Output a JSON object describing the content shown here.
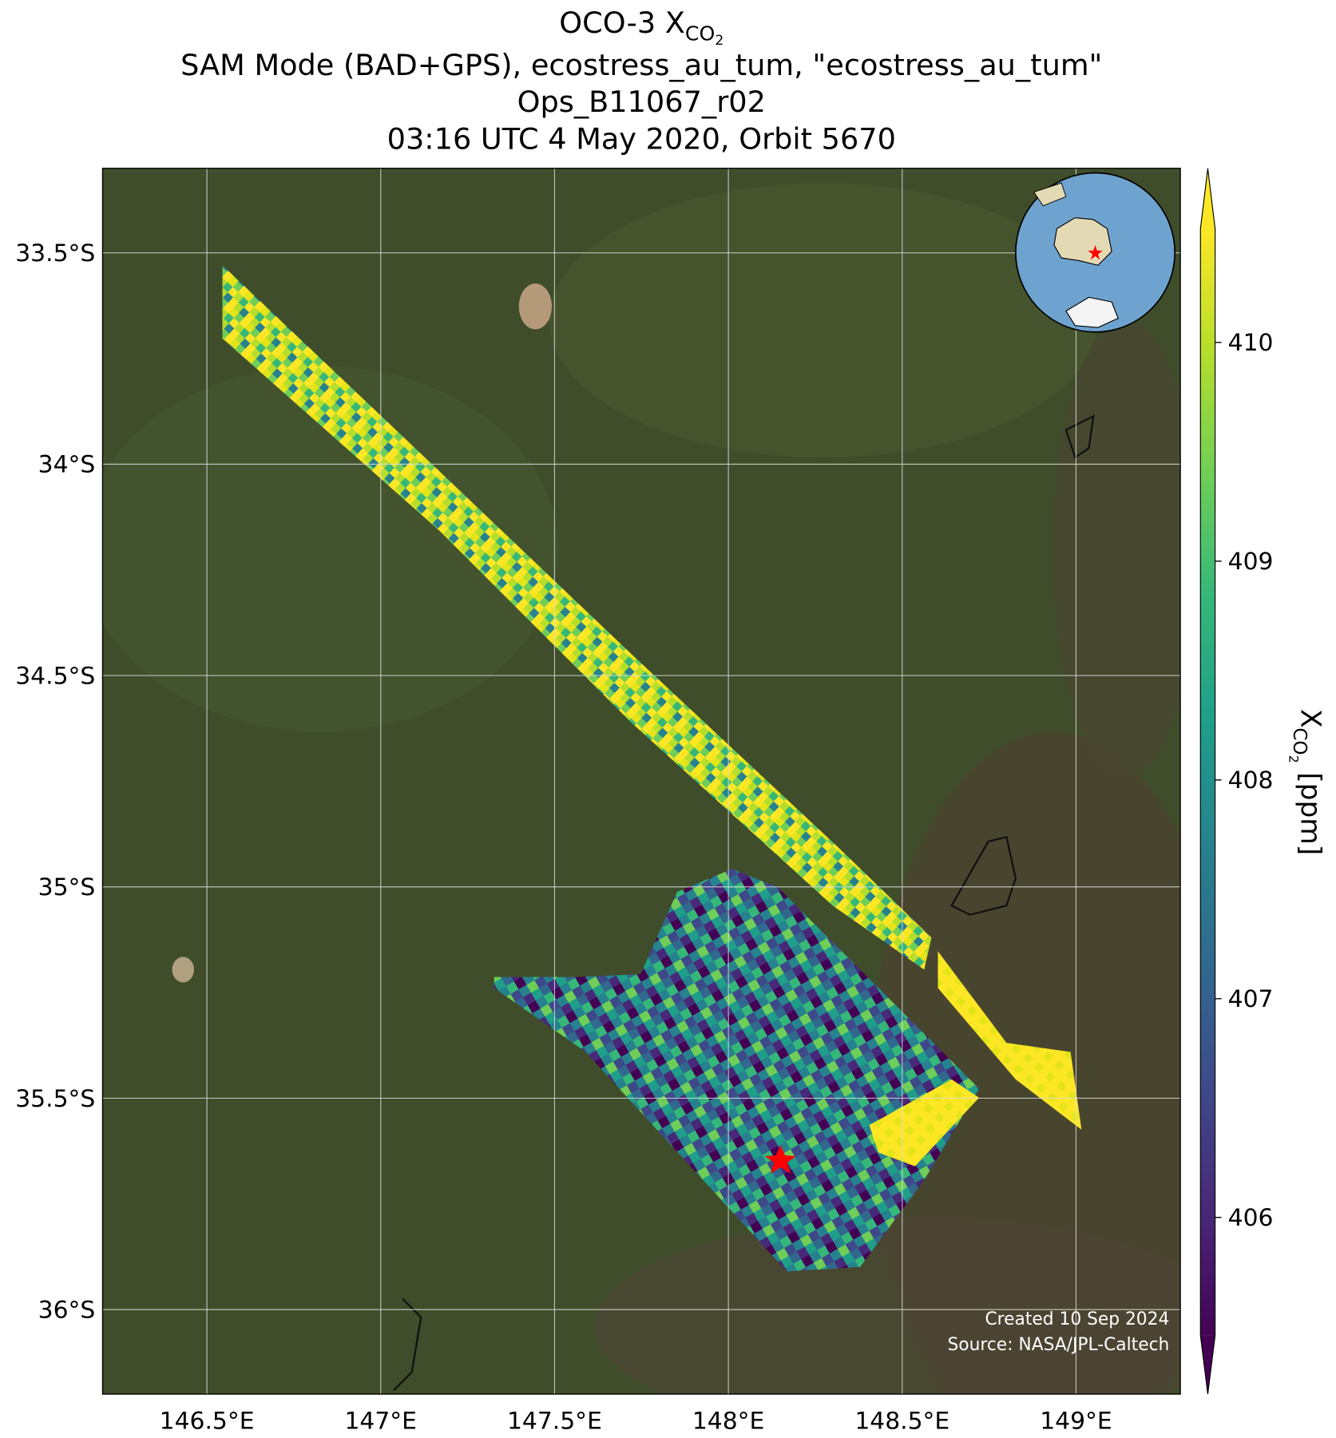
{
  "chart_data": {
    "type": "map",
    "title": {
      "name": "OCO-3 X",
      "subscript": "CO",
      "subsubscript": "2"
    },
    "subtitle_lines": [
      "SAM Mode (BAD+GPS), ecostress_au_tum, \"ecostress_au_tum\"",
      "Ops_B11067_r02",
      "03:16 UTC 4 May 2020, Orbit 5670"
    ],
    "xlim": [
      146.2,
      149.3
    ],
    "xticks": [
      {
        "value": 146.5,
        "label": "146.5°E"
      },
      {
        "value": 147,
        "label": "147°E"
      },
      {
        "value": 147.5,
        "label": "147.5°E"
      },
      {
        "value": 148,
        "label": "148°E"
      },
      {
        "value": 148.5,
        "label": "148.5°E"
      },
      {
        "value": 149,
        "label": "149°E"
      }
    ],
    "ylim": [
      -36.2,
      -33.3
    ],
    "yticks": [
      {
        "value": -33.5,
        "label": "33.5°S"
      },
      {
        "value": -34,
        "label": "34°S"
      },
      {
        "value": -34.5,
        "label": "34.5°S"
      },
      {
        "value": -35,
        "label": "35°S"
      },
      {
        "value": -35.5,
        "label": "35.5°S"
      },
      {
        "value": -36,
        "label": "36°S"
      }
    ],
    "grid": true,
    "colorbar": {
      "label": {
        "name": "X",
        "subscript": "CO",
        "subsubscript": "2",
        "unit": "[ppm]"
      },
      "lim": [
        405.46,
        410.52
      ],
      "ticks": [
        406,
        407,
        408,
        409,
        410
      ],
      "colormap": "viridis",
      "colors": [
        "#440154",
        "#482878",
        "#3e4989",
        "#31688e",
        "#26828e",
        "#1f9e89",
        "#35b779",
        "#6ece58",
        "#b5de2b",
        "#fde725"
      ]
    },
    "credits": [
      "Created 10 Sep 2024",
      "Source: NASA/JPL-Caltech"
    ]
  }
}
